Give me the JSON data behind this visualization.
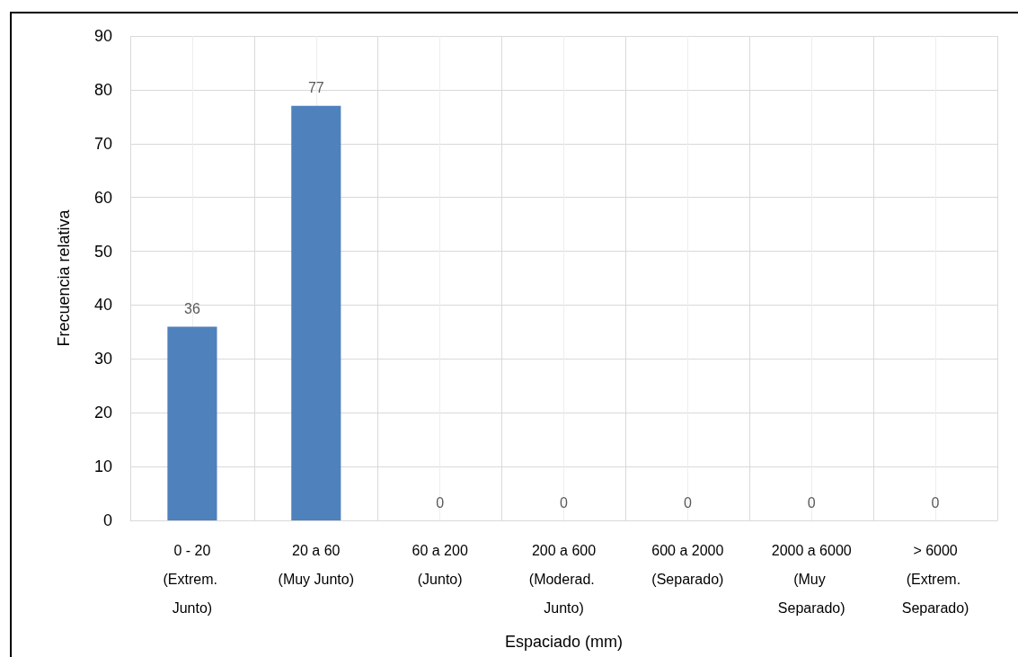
{
  "chart_data": {
    "type": "bar",
    "xlabel": "Espaciado (mm)",
    "ylabel": "Frecuencia relativa",
    "categories": [
      "0 - 20 (Extrem. Junto)",
      "20 a 60 (Muy Junto)",
      "60 a 200 (Junto)",
      "200 a 600 (Moderad. Junto)",
      "600 a 2000 (Separado)",
      "2000 a 6000 (Muy Separado)",
      "> 6000 (Extrem. Separado)"
    ],
    "values": [
      36,
      77,
      0,
      0,
      0,
      0,
      0
    ],
    "color": "#4f81bd",
    "ylim": [
      0,
      90
    ],
    "yticks": [
      0,
      10,
      20,
      30,
      40,
      50,
      60,
      70,
      80,
      90
    ],
    "grid": true,
    "data_labels": true
  }
}
